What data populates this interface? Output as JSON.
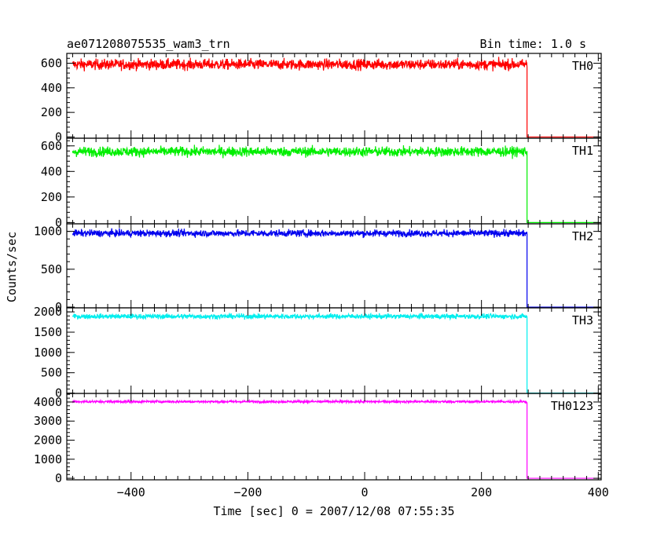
{
  "chart_data": {
    "type": "line",
    "title": "ae071208075535_wam3_trn",
    "subtitle": "Bin time: 1.0 s",
    "xlabel": "Time [sec] 0 = 2007/12/08 07:55:35",
    "ylabel": "Counts/sec",
    "xlim": [
      -510,
      405
    ],
    "xticks": [
      -400,
      -200,
      0,
      200,
      400
    ],
    "x_tick_labels": [
      "−400",
      "−200",
      "0",
      "200",
      "400"
    ],
    "grid": false,
    "step_time": 278,
    "x_start": -500,
    "x_end": 400,
    "panels": [
      {
        "name": "TH0",
        "color": "#ff0000",
        "level": 590,
        "noise": 28,
        "after": 0,
        "ylim": [
          -10,
          680
        ],
        "yticks": [
          0,
          200,
          400,
          600
        ],
        "ytick_labels": [
          "0",
          "200",
          "400",
          "600"
        ]
      },
      {
        "name": "TH1",
        "color": "#00ee00",
        "level": 555,
        "noise": 25,
        "after": 0,
        "ylim": [
          -10,
          660
        ],
        "yticks": [
          0,
          200,
          400,
          600
        ],
        "ytick_labels": [
          "0",
          "200",
          "400",
          "600"
        ]
      },
      {
        "name": "TH2",
        "color": "#0000ee",
        "level": 975,
        "noise": 30,
        "after": 0,
        "ylim": [
          -10,
          1100
        ],
        "yticks": [
          0,
          500,
          1000
        ],
        "ytick_labels": [
          "0",
          "500",
          "1000"
        ]
      },
      {
        "name": "TH3",
        "color": "#00eeee",
        "level": 1890,
        "noise": 40,
        "after": 0,
        "ylim": [
          -10,
          2100
        ],
        "yticks": [
          0,
          500,
          1000,
          1500,
          2000
        ],
        "ytick_labels": [
          "0",
          "500",
          "1000",
          "1500",
          "2000"
        ]
      },
      {
        "name": "TH0123",
        "color": "#ff00ff",
        "level": 4020,
        "noise": 40,
        "after": 0,
        "ylim": [
          -80,
          4450
        ],
        "yticks": [
          0,
          1000,
          2000,
          3000,
          4000
        ],
        "ytick_labels": [
          "0",
          "1000",
          "2000",
          "3000",
          "4000"
        ]
      }
    ]
  }
}
